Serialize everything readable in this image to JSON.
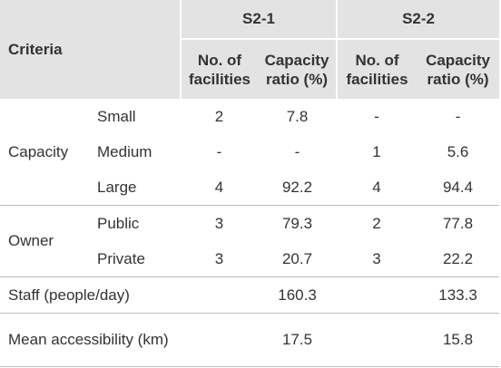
{
  "header": {
    "criteria": "Criteria",
    "scenarios": [
      "S2-1",
      "S2-2"
    ],
    "col_facilities": "No. of facilities",
    "col_ratio": "Capacity ratio (%)"
  },
  "groups": {
    "capacity": "Capacity",
    "owner": "Owner"
  },
  "rows": [
    {
      "sub": "Small",
      "s21_fac": "2",
      "s21_ratio": "7.8",
      "s22_fac": "-",
      "s22_ratio": "-"
    },
    {
      "sub": "Medium",
      "s21_fac": "-",
      "s21_ratio": "-",
      "s22_fac": "1",
      "s22_ratio": "5.6"
    },
    {
      "sub": "Large",
      "s21_fac": "4",
      "s21_ratio": "92.2",
      "s22_fac": "4",
      "s22_ratio": "94.4"
    },
    {
      "sub": "Public",
      "s21_fac": "3",
      "s21_ratio": "79.3",
      "s22_fac": "2",
      "s22_ratio": "77.8"
    },
    {
      "sub": "Private",
      "s21_fac": "3",
      "s21_ratio": "20.7",
      "s22_fac": "3",
      "s22_ratio": "22.2"
    }
  ],
  "staff": {
    "label": "Staff (people/day)",
    "s21": "160.3",
    "s22": "133.3"
  },
  "mean_access": {
    "label": "Mean accessibility (km)",
    "s21": "17.5",
    "s22": "15.8"
  }
}
